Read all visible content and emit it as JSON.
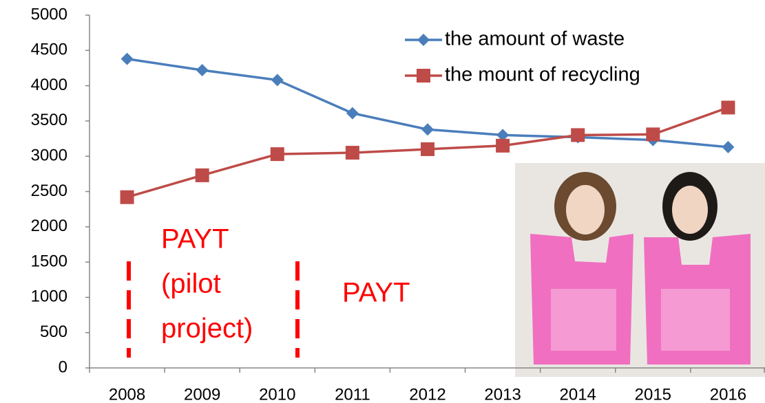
{
  "chart_data": {
    "type": "line",
    "categories": [
      "2008",
      "2009",
      "2010",
      "2011",
      "2012",
      "2013",
      "2014",
      "2015",
      "2016"
    ],
    "series": [
      {
        "name": "the amount of waste",
        "color": "#4a7ebb",
        "marker": "diamond",
        "values": [
          4380,
          4220,
          4080,
          3610,
          3380,
          3300,
          3270,
          3230,
          3130
        ]
      },
      {
        "name": "the mount of recycling",
        "color": "#be4b48",
        "marker": "square",
        "values": [
          2420,
          2730,
          3030,
          3050,
          3100,
          3150,
          3300,
          3310,
          3690
        ]
      }
    ],
    "ylim": [
      0,
      5000
    ],
    "yticks": [
      0,
      500,
      1000,
      1500,
      2000,
      2500,
      3000,
      3500,
      4000,
      4500,
      5000
    ],
    "grid": false,
    "legend": "upper right",
    "annotations": [
      {
        "lines": [
          "PAYT",
          "(pilot",
          "project)"
        ]
      },
      {
        "lines": [
          "PAYT"
        ]
      }
    ]
  }
}
